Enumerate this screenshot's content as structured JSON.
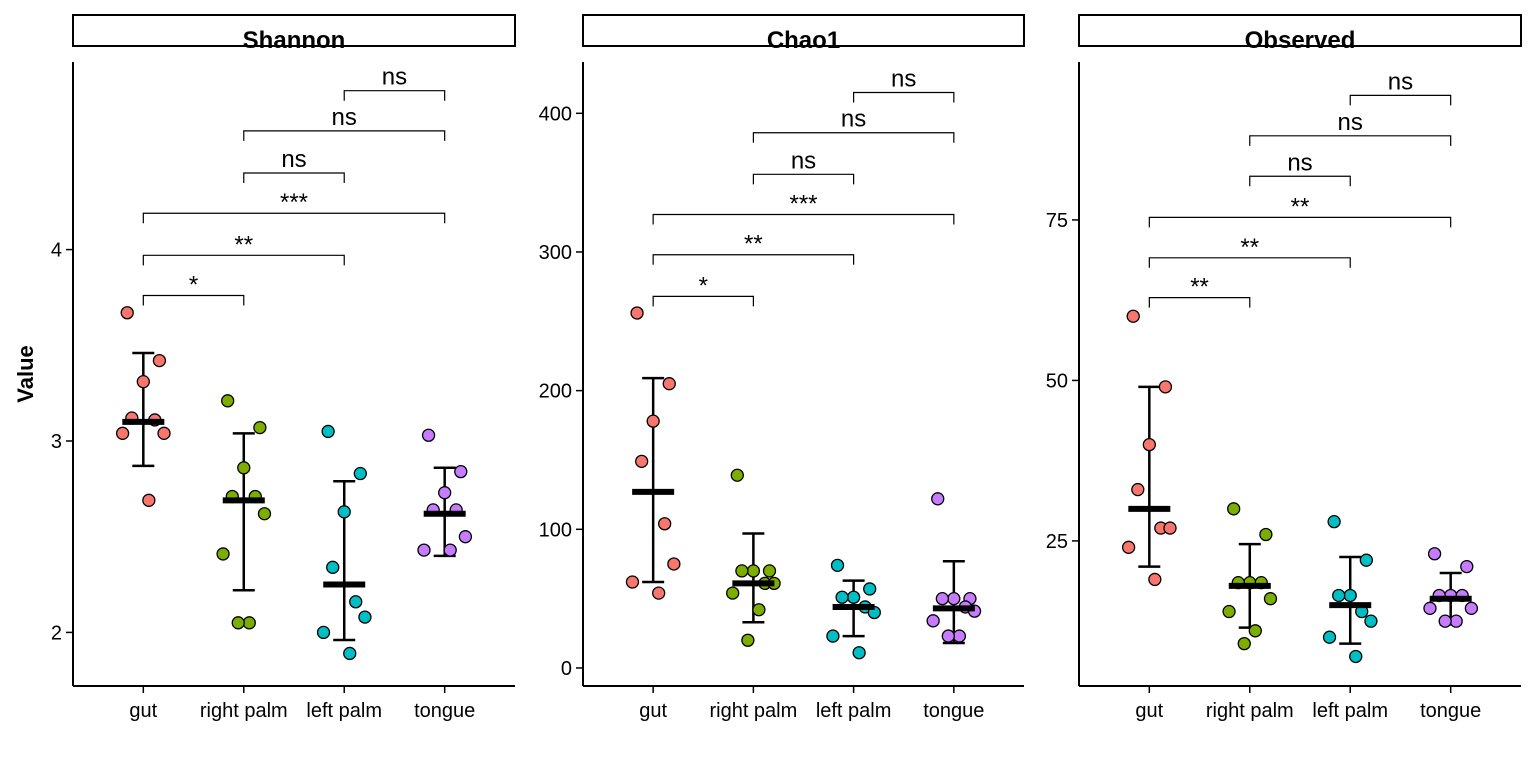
{
  "ylabel": "Value",
  "chart_data": [
    {
      "type": "scatter",
      "title": "Shannon",
      "categories": [
        "gut",
        "right palm",
        "left palm",
        "tongue"
      ],
      "ylabel": "Value",
      "ylim": [
        1.72,
        4.98
      ],
      "yticks": [
        2,
        3,
        4
      ],
      "colors": [
        "#F8766D",
        "#7CAE00",
        "#00BFC4",
        "#C77CFF"
      ],
      "series": [
        {
          "category": "gut",
          "values": [
            3.67,
            3.42,
            3.31,
            3.12,
            3.11,
            3.04,
            3.04,
            2.69
          ],
          "mean": 3.1,
          "err_low": 2.87,
          "err_high": 3.46
        },
        {
          "category": "right palm",
          "values": [
            3.21,
            3.07,
            2.86,
            2.71,
            2.71,
            2.62,
            2.41,
            2.05,
            2.05
          ],
          "mean": 2.69,
          "err_low": 2.22,
          "err_high": 3.04
        },
        {
          "category": "left palm",
          "values": [
            3.05,
            2.83,
            2.63,
            2.34,
            2.16,
            2.08,
            2.0,
            1.89
          ],
          "mean": 2.25,
          "err_low": 1.96,
          "err_high": 2.79
        },
        {
          "category": "tongue",
          "values": [
            3.03,
            2.84,
            2.73,
            2.64,
            2.64,
            2.5,
            2.43,
            2.43
          ],
          "mean": 2.62,
          "err_low": 2.4,
          "err_high": 2.86
        }
      ],
      "comparisons": [
        {
          "from": "gut",
          "to": "right palm",
          "y": 3.76,
          "label": "*"
        },
        {
          "from": "gut",
          "to": "left palm",
          "y": 3.97,
          "label": "**"
        },
        {
          "from": "gut",
          "to": "tongue",
          "y": 4.19,
          "label": "***"
        },
        {
          "from": "right palm",
          "to": "left palm",
          "y": 4.4,
          "label": "ns"
        },
        {
          "from": "right palm",
          "to": "tongue",
          "y": 4.62,
          "label": "ns"
        },
        {
          "from": "left palm",
          "to": "tongue",
          "y": 4.83,
          "label": "ns"
        }
      ]
    },
    {
      "type": "scatter",
      "title": "Chao1",
      "categories": [
        "gut",
        "right palm",
        "left palm",
        "tongue"
      ],
      "ylabel": "Value",
      "ylim": [
        -13,
        437
      ],
      "yticks": [
        0,
        100,
        200,
        300,
        400
      ],
      "colors": [
        "#F8766D",
        "#7CAE00",
        "#00BFC4",
        "#C77CFF"
      ],
      "series": [
        {
          "category": "gut",
          "values": [
            256,
            205,
            178,
            149,
            104,
            75,
            62,
            54
          ],
          "mean": 127,
          "err_low": 62,
          "err_high": 209
        },
        {
          "category": "right palm",
          "values": [
            139,
            70,
            70,
            70,
            61,
            61,
            54,
            42,
            20
          ],
          "mean": 61,
          "err_low": 33,
          "err_high": 97
        },
        {
          "category": "left palm",
          "values": [
            74,
            57,
            51,
            51,
            44,
            40,
            23,
            11
          ],
          "mean": 44,
          "err_low": 23,
          "err_high": 63
        },
        {
          "category": "tongue",
          "values": [
            122,
            50,
            50,
            50,
            44,
            41,
            34,
            23,
            23
          ],
          "mean": 43,
          "err_low": 18,
          "err_high": 77
        }
      ],
      "comparisons": [
        {
          "from": "gut",
          "to": "right palm",
          "y": 268,
          "label": "*"
        },
        {
          "from": "gut",
          "to": "left palm",
          "y": 298,
          "label": "**"
        },
        {
          "from": "gut",
          "to": "tongue",
          "y": 327,
          "label": "***"
        },
        {
          "from": "right palm",
          "to": "left palm",
          "y": 356,
          "label": "ns"
        },
        {
          "from": "right palm",
          "to": "tongue",
          "y": 386,
          "label": "ns"
        },
        {
          "from": "left palm",
          "to": "tongue",
          "y": 415,
          "label": "ns"
        }
      ]
    },
    {
      "type": "scatter",
      "title": "Observed",
      "categories": [
        "gut",
        "right palm",
        "left palm",
        "tongue"
      ],
      "ylabel": "Value",
      "ylim": [
        2.4,
        99.6
      ],
      "yticks": [
        25,
        50,
        75
      ],
      "colors": [
        "#F8766D",
        "#7CAE00",
        "#00BFC4",
        "#C77CFF"
      ],
      "series": [
        {
          "category": "gut",
          "values": [
            60,
            49,
            40,
            33,
            27,
            27,
            24,
            19
          ],
          "mean": 30,
          "err_low": 21,
          "err_high": 49
        },
        {
          "category": "right palm",
          "values": [
            30,
            26,
            18.5,
            18.5,
            18.5,
            16,
            14,
            11,
            9
          ],
          "mean": 18,
          "err_low": 11.5,
          "err_high": 24.5
        },
        {
          "category": "left palm",
          "values": [
            28,
            22,
            16.5,
            16.5,
            14,
            12.5,
            10,
            7
          ],
          "mean": 15,
          "err_low": 9,
          "err_high": 22.5
        },
        {
          "category": "tongue",
          "values": [
            23,
            21,
            16.5,
            16.5,
            16.5,
            14.5,
            14.5,
            12.5,
            12.5
          ],
          "mean": 16,
          "err_low": 12,
          "err_high": 20
        }
      ],
      "comparisons": [
        {
          "from": "gut",
          "to": "right palm",
          "y": 62.9,
          "label": "**"
        },
        {
          "from": "gut",
          "to": "left palm",
          "y": 69.1,
          "label": "**"
        },
        {
          "from": "gut",
          "to": "tongue",
          "y": 75.4,
          "label": "**"
        },
        {
          "from": "right palm",
          "to": "left palm",
          "y": 81.8,
          "label": "ns"
        },
        {
          "from": "right palm",
          "to": "tongue",
          "y": 88.1,
          "label": "ns"
        },
        {
          "from": "left palm",
          "to": "tongue",
          "y": 94.4,
          "label": "ns"
        }
      ]
    }
  ]
}
